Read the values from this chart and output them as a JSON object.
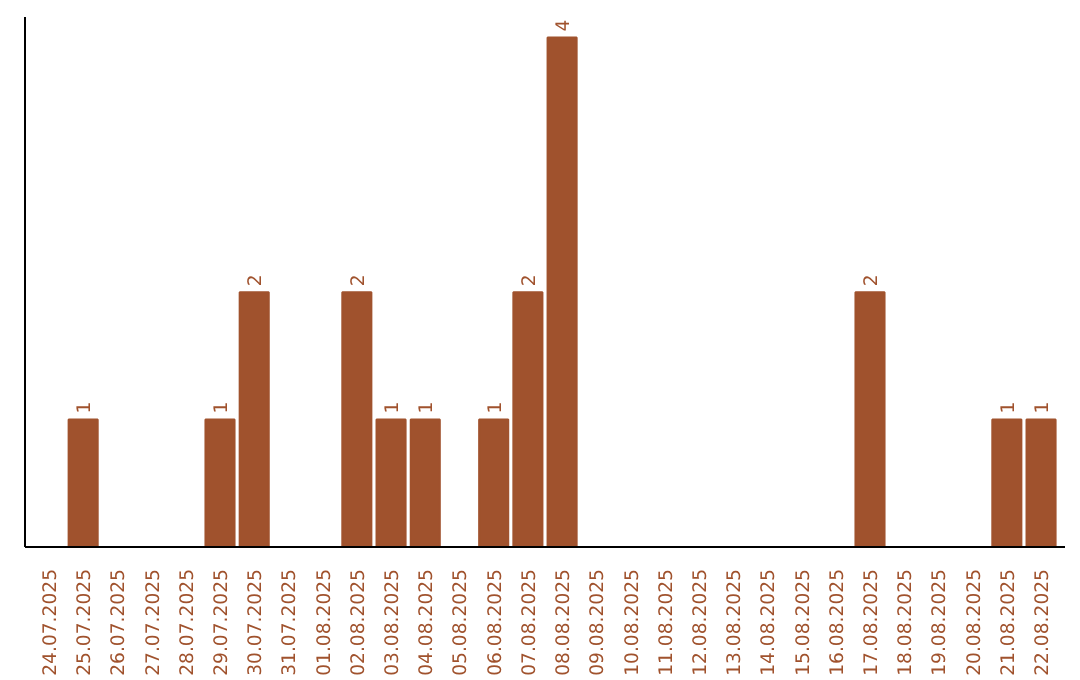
{
  "chart_data": {
    "type": "bar",
    "categories": [
      "24.07.2025",
      "25.07.2025",
      "26.07.2025",
      "27.07.2025",
      "28.07.2025",
      "29.07.2025",
      "30.07.2025",
      "31.07.2025",
      "01.08.2025",
      "02.08.2025",
      "03.08.2025",
      "04.08.2025",
      "05.08.2025",
      "06.08.2025",
      "07.08.2025",
      "08.08.2025",
      "09.08.2025",
      "10.08.2025",
      "11.08.2025",
      "12.08.2025",
      "13.08.2025",
      "14.08.2025",
      "15.08.2025",
      "16.08.2025",
      "17.08.2025",
      "18.08.2025",
      "19.08.2025",
      "20.08.2025",
      "21.08.2025",
      "22.08.2025"
    ],
    "values": [
      0,
      1,
      0,
      0,
      0,
      1,
      2,
      0,
      0,
      2,
      1,
      1,
      0,
      1,
      2,
      4,
      0,
      0,
      0,
      0,
      0,
      0,
      0,
      0,
      2,
      0,
      0,
      0,
      1,
      1
    ],
    "value_labels": [
      null,
      "1",
      null,
      null,
      null,
      "1",
      "2",
      null,
      null,
      "2",
      "1",
      "1",
      null,
      "1",
      "2",
      "4",
      null,
      null,
      null,
      null,
      null,
      null,
      null,
      null,
      "2",
      null,
      null,
      null,
      "1",
      "1"
    ],
    "color": "#a0522d",
    "grid": false,
    "tick_labels": "x"
  }
}
